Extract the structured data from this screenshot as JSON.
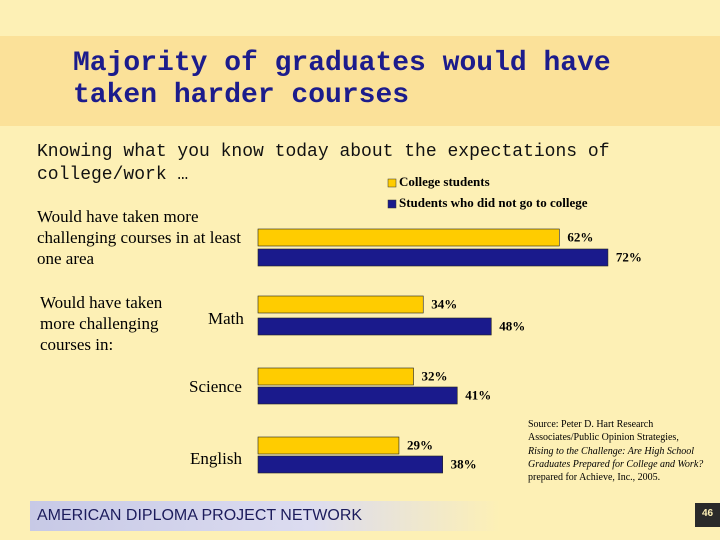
{
  "chart_data": {
    "type": "bar",
    "orientation": "horizontal",
    "title": "Majority of graduates would have taken harder courses",
    "subtitle": "Knowing what you know today about the expectations of college/work …",
    "group_label": "Would have taken more challenging courses in:",
    "categories": [
      "Would have taken more challenging courses in at least one area",
      "Math",
      "Science",
      "English"
    ],
    "series": [
      {
        "name": "College students",
        "color": "#ffcc00",
        "values": [
          62,
          34,
          32,
          29
        ],
        "value_labels": [
          "62%",
          "34%",
          "32%",
          "29%"
        ]
      },
      {
        "name": "Students who did not go to college",
        "color": "#1a1a8c",
        "values": [
          72,
          48,
          41,
          38
        ],
        "value_labels": [
          "72%",
          "48%",
          "41%",
          "38%"
        ]
      }
    ],
    "legend": "top-right"
  },
  "source": {
    "lead": "Source: Peter D. Hart Research Associates/Public Opinion Strategies,",
    "italic": "Rising to the Challenge: Are High School Graduates Prepared for College and Work?",
    "tail": "prepared for Achieve, Inc., 2005."
  },
  "footer": "AMERICAN DIPLOMA PROJECT NETWORK",
  "page_number": "46"
}
